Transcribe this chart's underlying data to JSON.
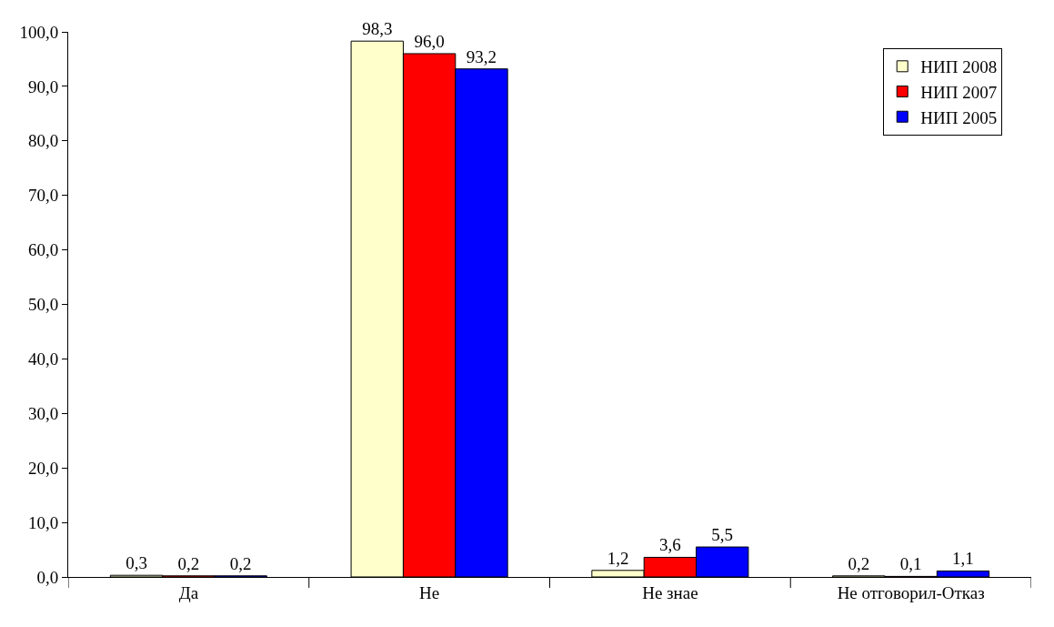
{
  "chart_data": {
    "type": "bar",
    "categories": [
      "Да",
      "Не",
      "Не знае",
      "Не отговорил-Отказ"
    ],
    "series": [
      {
        "name": "НИП 2008",
        "color": "#ffffcc",
        "values": [
          0.3,
          98.3,
          1.2,
          0.2
        ],
        "value_labels": [
          "0,3",
          "98,3",
          "1,2",
          "0,2"
        ]
      },
      {
        "name": "НИП 2007",
        "color": "#ff0000",
        "values": [
          0.2,
          96.0,
          3.6,
          0.1
        ],
        "value_labels": [
          "0,2",
          "96,0",
          "3,6",
          "0,1"
        ]
      },
      {
        "name": "НИП 2005",
        "color": "#0000ff",
        "values": [
          0.2,
          93.2,
          5.5,
          1.1
        ],
        "value_labels": [
          "0,2",
          "93,2",
          "5,5",
          "1,1"
        ]
      }
    ],
    "ylim": [
      0,
      100
    ],
    "yticks": [
      {
        "value": 0,
        "label": "0,0"
      },
      {
        "value": 10,
        "label": "10,0"
      },
      {
        "value": 20,
        "label": "20,0"
      },
      {
        "value": 30,
        "label": "30,0"
      },
      {
        "value": 40,
        "label": "40,0"
      },
      {
        "value": 50,
        "label": "50,0"
      },
      {
        "value": 60,
        "label": "60,0"
      },
      {
        "value": 70,
        "label": "70,0"
      },
      {
        "value": 80,
        "label": "80,0"
      },
      {
        "value": 90,
        "label": "90,0"
      },
      {
        "value": 100,
        "label": "100,0"
      }
    ],
    "grid": false,
    "legend": "top right"
  }
}
